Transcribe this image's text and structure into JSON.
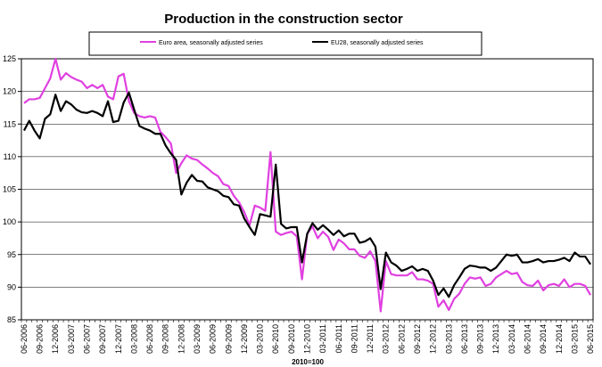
{
  "chart_data": {
    "type": "line",
    "title": "Production in the construction sector",
    "xlabel": "2010=100",
    "ylabel": "",
    "ylim": [
      85,
      125
    ],
    "yticks": [
      85,
      90,
      95,
      100,
      105,
      110,
      115,
      120,
      125
    ],
    "legend_position": "top",
    "grid": "horizontal",
    "x": [
      "06-2006",
      "07-2006",
      "08-2006",
      "09-2006",
      "10-2006",
      "11-2006",
      "12-2006",
      "01-2007",
      "02-2007",
      "03-2007",
      "04-2007",
      "05-2007",
      "06-2007",
      "07-2007",
      "08-2007",
      "09-2007",
      "10-2007",
      "11-2007",
      "12-2007",
      "01-2008",
      "02-2008",
      "03-2008",
      "04-2008",
      "05-2008",
      "06-2008",
      "07-2008",
      "08-2008",
      "09-2008",
      "10-2008",
      "11-2008",
      "12-2008",
      "01-2009",
      "02-2009",
      "03-2009",
      "04-2009",
      "05-2009",
      "06-2009",
      "07-2009",
      "08-2009",
      "09-2009",
      "10-2009",
      "11-2009",
      "12-2009",
      "01-2010",
      "02-2010",
      "03-2010",
      "04-2010",
      "05-2010",
      "06-2010",
      "07-2010",
      "08-2010",
      "09-2010",
      "10-2010",
      "11-2010",
      "12-2010",
      "01-2011",
      "02-2011",
      "03-2011",
      "04-2011",
      "05-2011",
      "06-2011",
      "07-2011",
      "08-2011",
      "09-2011",
      "10-2011",
      "11-2011",
      "12-2011",
      "01-2012",
      "02-2012",
      "03-2012",
      "04-2012",
      "05-2012",
      "06-2012",
      "07-2012",
      "08-2012",
      "09-2012",
      "10-2012",
      "11-2012",
      "12-2012",
      "01-2013",
      "02-2013",
      "03-2013",
      "04-2013",
      "05-2013",
      "06-2013",
      "07-2013",
      "08-2013",
      "09-2013",
      "10-2013",
      "11-2013",
      "12-2013",
      "01-2014",
      "02-2014",
      "03-2014",
      "04-2014",
      "05-2014",
      "06-2014",
      "07-2014",
      "08-2014",
      "09-2014",
      "10-2014",
      "11-2014",
      "12-2014",
      "01-2015",
      "02-2015",
      "03-2015",
      "04-2015",
      "05-2015",
      "06-2015"
    ],
    "x_tick_labels": [
      "06-2006",
      "09-2006",
      "12-2006",
      "03-2007",
      "06-2007",
      "09-2007",
      "12-2007",
      "03-2008",
      "06-2008",
      "09-2008",
      "12-2008",
      "03-2009",
      "06-2009",
      "09-2009",
      "12-2009",
      "03-2010",
      "06-2010",
      "09-2010",
      "12-2010",
      "03-2011",
      "06-2011",
      "09-2011",
      "12-2011",
      "03-2012",
      "06-2012",
      "09-2012",
      "12-2012",
      "03-2013",
      "06-2013",
      "09-2013",
      "12-2013",
      "03-2014",
      "06-2014",
      "09-2014",
      "12-2014",
      "03-2015",
      "06-2015"
    ],
    "series": [
      {
        "name": "Euro area, seasonally adjusted series",
        "color": "#e040e0",
        "values": [
          118.2,
          118.8,
          118.8,
          119.0,
          120.5,
          122.0,
          125.0,
          121.8,
          122.8,
          122.2,
          121.8,
          121.5,
          120.5,
          121.0,
          120.5,
          121.0,
          119.2,
          118.8,
          122.3,
          122.7,
          118.5,
          116.7,
          116.2,
          116.0,
          116.2,
          116.0,
          113.8,
          113.0,
          112.0,
          107.5,
          109.0,
          110.2,
          109.7,
          109.5,
          108.8,
          108.2,
          107.5,
          107.0,
          105.8,
          105.5,
          104.0,
          103.0,
          101.5,
          99.5,
          102.5,
          102.2,
          101.7,
          110.7,
          98.5,
          98.0,
          98.3,
          98.5,
          97.8,
          91.2,
          98.2,
          99.3,
          97.5,
          98.5,
          97.7,
          95.7,
          97.3,
          96.7,
          95.8,
          95.8,
          94.8,
          94.5,
          95.5,
          94.0,
          86.3,
          94.0,
          92.0,
          91.8,
          91.8,
          91.8,
          92.3,
          91.2,
          91.2,
          91.0,
          90.5,
          87.0,
          88.0,
          86.5,
          88.2,
          89.0,
          90.5,
          91.5,
          91.3,
          91.5,
          90.2,
          90.5,
          91.5,
          92.0,
          92.5,
          92.0,
          92.2,
          90.8,
          90.3,
          90.2,
          91.0,
          89.5,
          90.3,
          90.5,
          90.2,
          91.2,
          90.0,
          90.5,
          90.5,
          90.2,
          88.8
        ]
      },
      {
        "name": "EU28, seasonally adjusted series",
        "color": "#000000",
        "values": [
          114.0,
          115.5,
          114.0,
          112.8,
          115.8,
          116.5,
          119.5,
          117.0,
          118.5,
          118.0,
          117.2,
          116.8,
          116.7,
          117.0,
          116.7,
          116.2,
          118.5,
          115.3,
          115.5,
          118.3,
          119.8,
          117.2,
          114.7,
          114.3,
          114.0,
          113.5,
          113.5,
          111.7,
          110.5,
          109.5,
          104.2,
          106.0,
          107.2,
          106.3,
          106.2,
          105.3,
          105.0,
          104.7,
          104.0,
          103.8,
          102.7,
          102.5,
          100.5,
          99.2,
          98.0,
          101.2,
          101.0,
          100.8,
          108.8,
          99.7,
          99.0,
          99.2,
          99.2,
          93.8,
          98.2,
          99.8,
          98.8,
          99.5,
          98.8,
          98.0,
          98.7,
          97.8,
          98.2,
          98.2,
          96.8,
          97.0,
          97.5,
          96.2,
          89.7,
          95.3,
          93.8,
          93.3,
          92.5,
          92.8,
          93.2,
          92.5,
          92.8,
          92.5,
          91.0,
          88.8,
          89.8,
          88.5,
          90.3,
          91.5,
          92.8,
          93.3,
          93.2,
          93.0,
          93.0,
          92.5,
          93.0,
          94.0,
          95.0,
          94.8,
          95.0,
          93.8,
          93.8,
          94.0,
          94.3,
          93.8,
          94.0,
          94.0,
          94.2,
          94.5,
          94.0,
          95.3,
          94.7,
          94.7,
          93.5
        ]
      }
    ]
  }
}
